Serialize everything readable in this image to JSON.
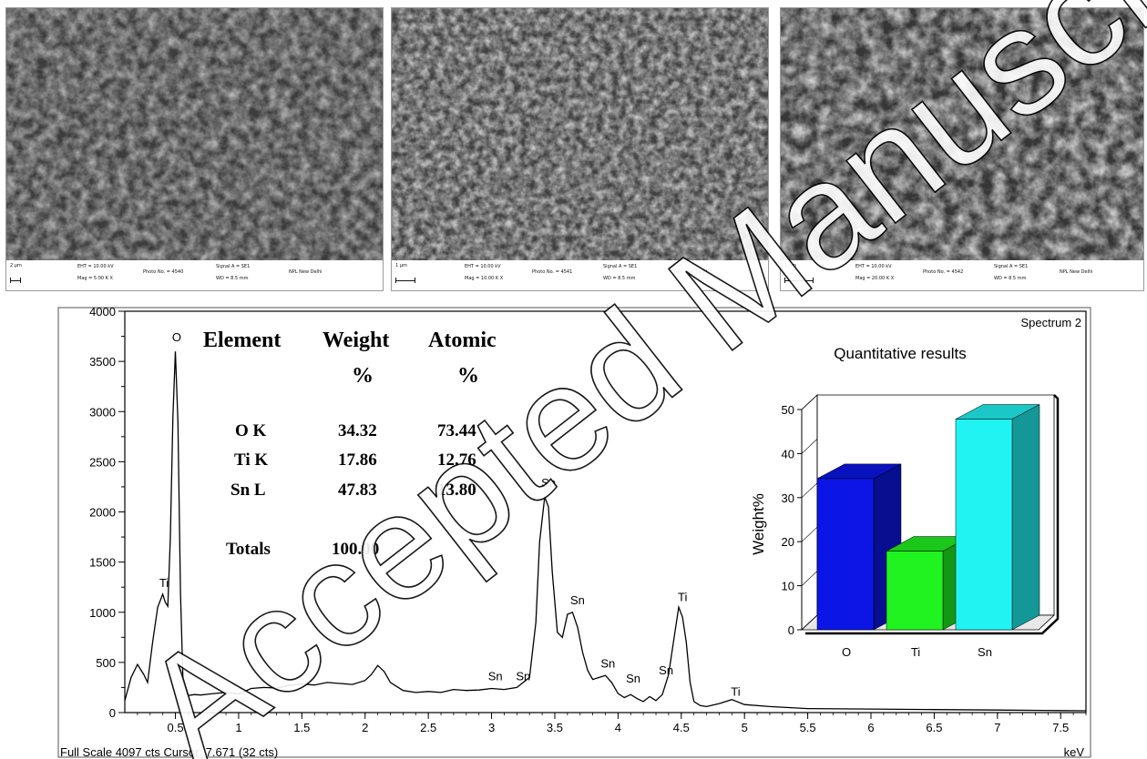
{
  "sem_images": [
    {
      "scale_bar": "2 μm",
      "eht": "EHT = 10.00 kV",
      "mag": "Mag =  5.00 K X",
      "photo": "Photo No. = 4540",
      "signal": "Signal A = SE1",
      "wd": "WD =  8.5 mm",
      "lab": "NPL New Delhi"
    },
    {
      "scale_bar": "1 μm",
      "eht": "EHT = 10.00 kV",
      "mag": "Mag = 10.00 K X",
      "photo": "Photo No. = 4541",
      "signal": "Signal A = SE1",
      "wd": "WD =  8.5 mm",
      "lab": "NPL New Delhi"
    },
    {
      "scale_bar": "1 μm",
      "eht": "EHT = 10.00 kV",
      "mag": "Mag = 20.00 K X",
      "photo": "Photo No. = 4542",
      "signal": "Signal A = SE1",
      "wd": "WD =  8.5 mm",
      "lab": "NPL New Delhi"
    }
  ],
  "chart_data": [
    {
      "type": "line",
      "title": "Spectrum 2",
      "xlabel": "keV",
      "ylabel": "",
      "xlim": [
        0.1,
        7.7
      ],
      "ylim": [
        0,
        4000
      ],
      "x_ticks": [
        "0.5",
        "1",
        "1.5",
        "2",
        "2.5",
        "3",
        "3.5",
        "4",
        "4.5",
        "5",
        "5.5",
        "6",
        "6.5",
        "7",
        "7.5"
      ],
      "y_ticks": [
        "0",
        "500",
        "1000",
        "1500",
        "2000",
        "2500",
        "3000",
        "3500",
        "4000"
      ],
      "footer": "Full Scale 4097 cts Cursor: 7.671  (32 cts)",
      "series": [
        {
          "x": [
            0.1,
            0.15,
            0.2,
            0.25,
            0.28,
            0.32,
            0.36,
            0.4,
            0.42,
            0.44,
            0.46,
            0.48,
            0.5,
            0.52,
            0.54,
            0.56,
            0.6,
            0.65,
            0.7,
            0.8,
            0.9,
            1.0,
            1.1,
            1.2,
            1.3,
            1.4,
            1.5,
            1.6,
            1.7,
            1.8,
            1.9,
            2.0,
            2.05,
            2.1,
            2.15,
            2.2,
            2.3,
            2.4,
            2.5,
            2.6,
            2.7,
            2.8,
            2.9,
            3.0,
            3.1,
            3.2,
            3.3,
            3.35,
            3.38,
            3.42,
            3.45,
            3.48,
            3.52,
            3.56,
            3.6,
            3.64,
            3.68,
            3.72,
            3.76,
            3.8,
            3.85,
            3.9,
            3.95,
            4.0,
            4.05,
            4.1,
            4.15,
            4.2,
            4.25,
            4.3,
            4.35,
            4.4,
            4.45,
            4.48,
            4.51,
            4.54,
            4.57,
            4.6,
            4.65,
            4.7,
            4.8,
            4.9,
            5.0,
            5.2,
            5.5,
            6.0,
            6.5,
            7.0,
            7.5,
            7.7
          ],
          "y": [
            120,
            350,
            480,
            380,
            300,
            700,
            1050,
            1180,
            1100,
            1060,
            1750,
            2950,
            3600,
            2900,
            1200,
            300,
            170,
            180,
            175,
            190,
            200,
            185,
            240,
            250,
            245,
            270,
            285,
            275,
            300,
            290,
            280,
            320,
            380,
            470,
            410,
            300,
            220,
            200,
            210,
            200,
            230,
            220,
            225,
            240,
            230,
            250,
            350,
            900,
            1700,
            2150,
            2050,
            1400,
            800,
            750,
            980,
            1000,
            850,
            600,
            420,
            330,
            350,
            370,
            300,
            190,
            150,
            180,
            140,
            110,
            160,
            120,
            180,
            380,
            800,
            1050,
            950,
            700,
            300,
            110,
            70,
            60,
            90,
            130,
            80,
            60,
            40,
            35,
            30,
            25,
            20,
            18
          ]
        }
      ],
      "annotations": [
        {
          "label": "O",
          "x": 0.51,
          "y": 3700
        },
        {
          "label": "Ti",
          "x": 0.41,
          "y": 1250
        },
        {
          "label": "Sn",
          "x": 3.45,
          "y": 2250
        },
        {
          "label": "Sn",
          "x": 3.68,
          "y": 1080
        },
        {
          "label": "Sn",
          "x": 3.92,
          "y": 450
        },
        {
          "label": "Sn",
          "x": 4.12,
          "y": 300
        },
        {
          "label": "Sn",
          "x": 3.03,
          "y": 320
        },
        {
          "label": "Sn",
          "x": 3.25,
          "y": 320
        },
        {
          "label": "Sn",
          "x": 4.38,
          "y": 380
        },
        {
          "label": "Ti",
          "x": 4.51,
          "y": 1110
        },
        {
          "label": "Ti",
          "x": 4.93,
          "y": 170
        }
      ],
      "table": {
        "headers": [
          "Element",
          "Weight",
          "Atomic"
        ],
        "units": [
          "",
          "%",
          "%"
        ],
        "rows": [
          {
            "element": "O K",
            "weight": "34.32",
            "atomic": "73.44"
          },
          {
            "element": "Ti K",
            "weight": "17.86",
            "atomic": "12.76"
          },
          {
            "element": "Sn L",
            "weight": "47.83",
            "atomic": "13.80"
          }
        ],
        "totals_label": "Totals",
        "totals_value": "100.00"
      }
    },
    {
      "type": "bar",
      "title": "Quantitative results",
      "ylabel": "Weight%",
      "categories": [
        "O",
        "Ti",
        "Sn"
      ],
      "values": [
        34.32,
        17.86,
        47.83
      ],
      "ylim": [
        0,
        50
      ],
      "y_ticks": [
        "0",
        "10",
        "20",
        "30",
        "40",
        "50"
      ],
      "colors": [
        "#0b16e6",
        "#21f321",
        "#21f3f3"
      ]
    }
  ],
  "watermark": "Accepted Manuscript"
}
